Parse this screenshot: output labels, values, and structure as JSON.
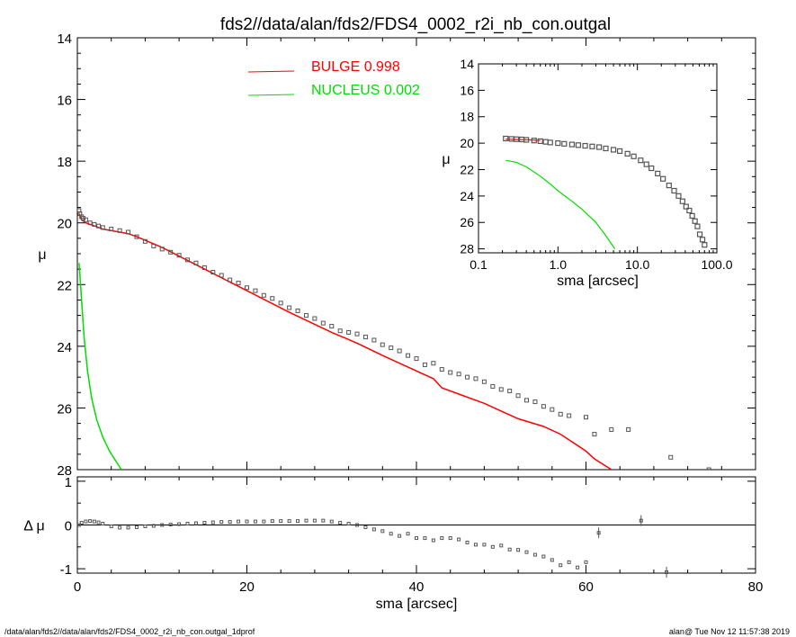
{
  "title": "fds2//data/alan/fds2/FDS4_0002_r2i_nb_con.outgal",
  "footer": {
    "left": "/data/alan/fds2//data/alan/fds2/FDS4_0002_r2i_nb_con.outgal_1dprof",
    "right": "alan@  Tue Nov 12 11:57:38 2019"
  },
  "colors": {
    "bulge": "#ff0000",
    "nucleus": "#00dd00",
    "points": "#555555"
  },
  "chart_data": [
    {
      "type": "scatter",
      "name": "main",
      "xlabel": "sma [arcsec]",
      "ylabel": "μ",
      "xlim": [
        0,
        80
      ],
      "ylim": [
        28,
        14
      ],
      "xticks": [
        "0",
        "20",
        "40",
        "60",
        "80"
      ],
      "yticks": [
        "14",
        "16",
        "18",
        "20",
        "22",
        "24",
        "26",
        "28"
      ],
      "legend": [
        {
          "label": "BULGE  0.998",
          "color": "#ff0000"
        },
        {
          "label": "NUCLEUS  0.002",
          "color": "#00dd00"
        }
      ],
      "series": [
        {
          "name": "BULGE",
          "kind": "line",
          "color": "#ff0000",
          "x": [
            0.2,
            0.5,
            1,
            2,
            3,
            4,
            5,
            6,
            7,
            10,
            15,
            20,
            25,
            30,
            33,
            36,
            40,
            42,
            43,
            45,
            48,
            50,
            52,
            55,
            57,
            60,
            61,
            63
          ],
          "y": [
            19.7,
            19.9,
            20.0,
            20.1,
            20.2,
            20.25,
            20.3,
            20.35,
            20.45,
            20.8,
            21.5,
            22.2,
            22.9,
            23.55,
            23.9,
            24.3,
            24.8,
            25.05,
            25.35,
            25.55,
            25.85,
            26.1,
            26.35,
            26.6,
            26.85,
            27.4,
            27.65,
            28.0
          ]
        },
        {
          "name": "NUCLEUS",
          "kind": "line",
          "color": "#00dd00",
          "x": [
            0.2,
            0.5,
            0.8,
            1.2,
            1.7,
            2.3,
            3.0,
            3.8,
            4.6,
            5.2
          ],
          "y": [
            21.3,
            22.5,
            23.7,
            24.8,
            25.7,
            26.4,
            26.95,
            27.4,
            27.75,
            28.0
          ]
        },
        {
          "name": "data",
          "kind": "points",
          "x": [
            0.2,
            0.3,
            0.5,
            0.7,
            1,
            1.5,
            2,
            2.5,
            3,
            4,
            5,
            6,
            7,
            8,
            9,
            10,
            11,
            12,
            13,
            14,
            15,
            16,
            17,
            18,
            19,
            20,
            21,
            22,
            23,
            24,
            25,
            26,
            27,
            28,
            29,
            30,
            31,
            32,
            33,
            34,
            35,
            36,
            37,
            38,
            39,
            40,
            41,
            42,
            43,
            44,
            45,
            46,
            47,
            48,
            49,
            50,
            51,
            52,
            53,
            54,
            55,
            56,
            57,
            58,
            60,
            61,
            63,
            65,
            70,
            74.5
          ],
          "y": [
            19.6,
            19.7,
            19.8,
            19.85,
            19.9,
            20.0,
            20.05,
            20.1,
            20.15,
            20.2,
            20.25,
            20.3,
            20.45,
            20.6,
            20.75,
            20.85,
            20.95,
            21.05,
            21.2,
            21.3,
            21.45,
            21.6,
            21.7,
            21.85,
            21.95,
            22.1,
            22.2,
            22.35,
            22.45,
            22.6,
            22.75,
            22.85,
            23.0,
            23.1,
            23.25,
            23.35,
            23.5,
            23.55,
            23.6,
            23.7,
            23.8,
            23.95,
            24.05,
            24.15,
            24.3,
            24.4,
            24.6,
            24.55,
            24.75,
            24.85,
            24.9,
            25.0,
            25.05,
            25.15,
            25.3,
            25.4,
            25.45,
            25.6,
            25.75,
            25.8,
            25.95,
            26.05,
            26.2,
            26.25,
            26.3,
            26.85,
            26.7,
            26.7,
            27.6,
            28.0
          ]
        }
      ]
    },
    {
      "type": "scatter",
      "name": "residual",
      "xlabel": "sma [arcsec]",
      "ylabel": "Δ μ",
      "xlim": [
        0,
        80
      ],
      "ylim": [
        -1.1,
        1.1
      ],
      "yticks": [
        "1",
        "0",
        "-1"
      ],
      "series": [
        {
          "name": "residual",
          "x": [
            0.2,
            0.5,
            1,
            1.5,
            2,
            2.5,
            3,
            4,
            5,
            6,
            7,
            8,
            9,
            10,
            11,
            12,
            13,
            14,
            15,
            16,
            17,
            18,
            19,
            20,
            21,
            22,
            23,
            24,
            25,
            26,
            27,
            28,
            29,
            30,
            31,
            32,
            33,
            34,
            35,
            36,
            37,
            38,
            39,
            40,
            41,
            42,
            43,
            44,
            45,
            46,
            47,
            48,
            49,
            50,
            51,
            52,
            53,
            54,
            55,
            56,
            57,
            58,
            59,
            60,
            61.5,
            66.5,
            69.5
          ],
          "y": [
            0.0,
            0.05,
            0.08,
            0.09,
            0.08,
            0.06,
            0.03,
            -0.03,
            -0.06,
            -0.06,
            -0.05,
            -0.03,
            -0.02,
            0.0,
            0.01,
            0.02,
            0.03,
            0.04,
            0.05,
            0.06,
            0.07,
            0.07,
            0.08,
            0.08,
            0.08,
            0.08,
            0.09,
            0.09,
            0.09,
            0.09,
            0.1,
            0.1,
            0.1,
            0.08,
            0.05,
            0.03,
            0.0,
            -0.05,
            -0.1,
            -0.14,
            -0.2,
            -0.25,
            -0.2,
            -0.3,
            -0.3,
            -0.35,
            -0.3,
            -0.3,
            -0.33,
            -0.4,
            -0.45,
            -0.45,
            -0.5,
            -0.47,
            -0.56,
            -0.57,
            -0.62,
            -0.68,
            -0.72,
            -0.8,
            -0.92,
            -0.85,
            -0.97,
            -0.85,
            -0.18,
            0.1,
            -1.08
          ]
        }
      ]
    },
    {
      "type": "scatter",
      "name": "inset",
      "scale": "log-x",
      "xlabel": "sma [arcsec]",
      "ylabel": "μ",
      "xlim": [
        0.1,
        100
      ],
      "ylim": [
        28.3,
        14
      ],
      "xticks": [
        "0.1",
        "1.0",
        "10.0",
        "100.0"
      ],
      "yticks": [
        "14",
        "16",
        "18",
        "20",
        "22",
        "24",
        "26",
        "28"
      ],
      "series": [
        {
          "name": "BULGE",
          "kind": "line",
          "color": "#ff0000",
          "x": [
            0.22,
            0.3,
            0.4,
            0.6
          ],
          "y": [
            19.7,
            19.72,
            19.74,
            19.8
          ]
        },
        {
          "name": "NUCLEUS",
          "kind": "line",
          "color": "#00dd00",
          "x": [
            0.22,
            0.3,
            0.4,
            0.6,
            0.8,
            1.0,
            1.5,
            2.0,
            3.0,
            4.0,
            5.2
          ],
          "y": [
            21.3,
            21.45,
            21.8,
            22.5,
            23.1,
            23.6,
            24.4,
            25.0,
            26.0,
            27.0,
            28.0
          ]
        },
        {
          "name": "data",
          "kind": "points",
          "x": [
            0.22,
            0.26,
            0.3,
            0.35,
            0.4,
            0.5,
            0.6,
            0.7,
            0.8,
            1.0,
            1.2,
            1.5,
            1.8,
            2.2,
            2.7,
            3.3,
            4.0,
            5.0,
            6.0,
            7.5,
            9.0,
            11.0,
            13.0,
            15.0,
            18.0,
            21.0,
            25.0,
            29.0,
            33.0,
            37.0,
            41.0,
            45.0,
            49.0,
            53.0,
            57.0,
            61.0,
            66.0,
            70.0
          ],
          "y": [
            19.65,
            19.68,
            19.7,
            19.72,
            19.75,
            19.8,
            19.85,
            19.9,
            19.95,
            20.0,
            20.05,
            20.1,
            20.15,
            20.2,
            20.25,
            20.3,
            20.4,
            20.5,
            20.6,
            20.8,
            21.0,
            21.3,
            21.6,
            21.9,
            22.3,
            22.7,
            23.2,
            23.6,
            24.0,
            24.4,
            24.8,
            25.1,
            25.5,
            25.9,
            26.3,
            26.9,
            27.3,
            27.7
          ]
        }
      ]
    }
  ]
}
